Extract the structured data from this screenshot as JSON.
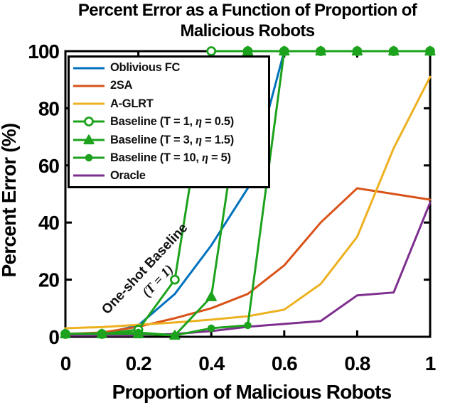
{
  "title": {
    "line1": "Percent Error as a Function of Proportion of",
    "line2": "Malicious Robots"
  },
  "axes": {
    "x_label": "Proportion of Malicious Robots",
    "y_label": "Percent Error (%)",
    "x_ticks": [
      "0",
      "0.2",
      "0.4",
      "0.6",
      "0.8",
      "1"
    ],
    "y_ticks": [
      "0",
      "20",
      "40",
      "60",
      "80",
      "100"
    ]
  },
  "annotation": {
    "line1": "One-shot Baseline",
    "line2": "(T = 1)"
  },
  "chart_data": {
    "type": "line",
    "title": "Percent Error as a Function of Proportion of Malicious Robots",
    "xlabel": "Proportion of Malicious Robots",
    "ylabel": "Percent Error (%)",
    "xlim": [
      0,
      1
    ],
    "ylim": [
      0,
      100
    ],
    "x_tick_values": [
      0,
      0.2,
      0.4,
      0.6,
      0.8,
      1
    ],
    "y_tick_values": [
      0,
      20,
      40,
      60,
      80,
      100
    ],
    "grid": false,
    "legend_position": "top-left",
    "x": [
      0,
      0.1,
      0.2,
      0.3,
      0.4,
      0.5,
      0.6,
      0.7,
      0.8,
      0.9,
      1.0
    ],
    "series": [
      {
        "name": "Oblivious FC",
        "color": "#0072BD",
        "marker": "none",
        "linewidth": 3,
        "values": [
          0.5,
          1,
          4,
          15,
          32,
          52,
          100,
          100,
          100,
          100,
          100
        ]
      },
      {
        "name": "2SA",
        "color": "#D95319",
        "marker": "none",
        "linewidth": 3,
        "values": [
          1,
          1.5,
          3.5,
          6.5,
          10,
          15,
          25,
          40,
          52,
          50,
          48
        ]
      },
      {
        "name": "A-GLRT",
        "color": "#EDB120",
        "marker": "none",
        "linewidth": 3,
        "values": [
          3,
          3.4,
          4.2,
          5,
          6,
          7.2,
          9.5,
          18.5,
          35,
          66,
          91
        ]
      },
      {
        "name": "Baseline (T = 1, η = 0.5)",
        "color": "#1CA21C",
        "marker": "circle-open",
        "linewidth": 3,
        "values": [
          1,
          1,
          2.5,
          20,
          100,
          100,
          100,
          100,
          100,
          100,
          100
        ]
      },
      {
        "name": "Baseline (T = 3, η = 1.5)",
        "color": "#1CA21C",
        "marker": "triangle-filled",
        "linewidth": 3,
        "values": [
          1,
          1,
          1,
          0.5,
          14,
          100,
          100,
          100,
          100,
          100,
          100
        ]
      },
      {
        "name": "Baseline (T = 10, η = 5)",
        "color": "#1CA21C",
        "marker": "circle-filled",
        "linewidth": 3,
        "values": [
          1,
          1.2,
          1.5,
          0.5,
          3,
          4,
          100,
          100,
          100,
          100,
          100
        ]
      },
      {
        "name": "Oracle",
        "color": "#7E2F8E",
        "marker": "none",
        "linewidth": 3,
        "values": [
          0.5,
          0.5,
          0.5,
          1,
          2,
          3.5,
          4.5,
          5.5,
          14.5,
          15.5,
          47
        ]
      }
    ]
  }
}
